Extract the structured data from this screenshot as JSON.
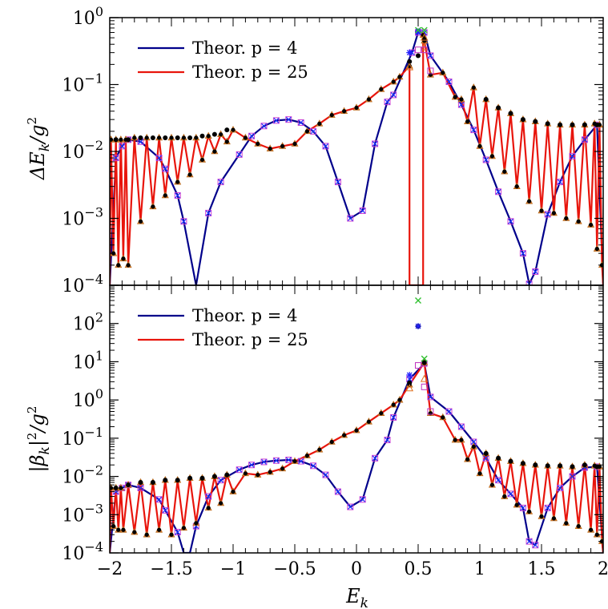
{
  "chart_data": [
    {
      "type": "line",
      "ylabel": "ΔE_k/g²",
      "yscale": "log",
      "xlim": [
        -2,
        2
      ],
      "ylim": [
        0.0001,
        1
      ],
      "y_ticks": [
        {
          "v": 1,
          "b": "10",
          "e": "0"
        },
        {
          "v": 0.1,
          "b": "10",
          "e": "−1"
        },
        {
          "v": 0.01,
          "b": "10",
          "e": "−2"
        },
        {
          "v": 0.001,
          "b": "10",
          "e": "−3"
        },
        {
          "v": 0.0001,
          "b": "10",
          "e": "−4"
        }
      ],
      "legend_position": "top-left",
      "legend": [
        "Theor. p = 4",
        "Theor. p = 25"
      ],
      "series": [
        {
          "name": "Theor. p = 4",
          "color": "#00008b",
          "x": [
            -2.0,
            -1.95,
            -1.9,
            -1.85,
            -1.75,
            -1.6,
            -1.55,
            -1.45,
            -1.4,
            -1.3,
            -1.2,
            -1.1,
            -0.95,
            -0.85,
            -0.75,
            -0.65,
            -0.55,
            -0.45,
            -0.35,
            -0.25,
            -0.15,
            -0.05,
            0.05,
            0.15,
            0.25,
            0.3,
            0.45,
            0.5,
            0.55,
            0.6,
            0.75,
            0.85,
            0.95,
            1.05,
            1.15,
            1.25,
            1.35,
            1.4,
            1.45,
            1.55,
            1.65,
            1.75,
            1.85,
            1.95,
            2.0
          ],
          "y": [
            0.0001,
            0.008,
            0.012,
            0.015,
            0.014,
            0.008,
            0.0055,
            0.0022,
            0.0009,
            9.5e-05,
            0.0012,
            0.0035,
            0.009,
            0.017,
            0.024,
            0.029,
            0.03,
            0.027,
            0.02,
            0.012,
            0.0035,
            0.001,
            0.0013,
            0.013,
            0.055,
            0.07,
            0.3,
            0.6,
            0.6,
            0.27,
            0.11,
            0.05,
            0.021,
            0.0075,
            0.0025,
            0.0009,
            0.0003,
            0.000105,
            0.00016,
            0.00115,
            0.0035,
            0.0085,
            0.015,
            0.025,
            0.0001
          ]
        },
        {
          "name": "Theor. p = 25",
          "color": "#e8150c",
          "x": [
            -2.0,
            -1.99,
            -1.97,
            -1.95,
            -1.93,
            -1.91,
            -1.89,
            -1.87,
            -1.85,
            -1.8,
            -1.75,
            -1.7,
            -1.65,
            -1.6,
            -1.55,
            -1.5,
            -1.45,
            -1.4,
            -1.35,
            -1.3,
            -1.25,
            -1.2,
            -1.15,
            -1.1,
            -1.05,
            -1.0,
            -0.9,
            -0.8,
            -0.7,
            -0.6,
            -0.5,
            -0.4,
            -0.3,
            -0.2,
            -0.1,
            0.0,
            0.1,
            0.2,
            0.3,
            0.35,
            0.43,
            0.43,
            0.45,
            0.54,
            0.54,
            0.55,
            0.6,
            0.7,
            0.8,
            0.85,
            0.9,
            0.95,
            1.0,
            1.05,
            1.1,
            1.15,
            1.2,
            1.25,
            1.3,
            1.35,
            1.4,
            1.45,
            1.5,
            1.55,
            1.6,
            1.65,
            1.7,
            1.75,
            1.8,
            1.85,
            1.9,
            1.93,
            1.95,
            1.97,
            1.99,
            2.0
          ],
          "y": [
            0.0001,
            0.015,
            0.0003,
            0.015,
            0.0002,
            0.015,
            0.00025,
            0.015,
            0.0002,
            0.016,
            0.0009,
            0.016,
            0.0015,
            0.016,
            0.0022,
            0.016,
            0.0035,
            0.016,
            0.0045,
            0.016,
            0.0075,
            0.017,
            0.01,
            0.018,
            0.014,
            0.021,
            0.016,
            0.013,
            0.011,
            0.012,
            0.013,
            0.02,
            0.026,
            0.035,
            0.04,
            0.045,
            0.06,
            0.085,
            0.11,
            0.13,
            0.19,
            0.0001,
            0.0001,
            0.0001,
            0.55,
            0.45,
            0.14,
            0.15,
            0.065,
            0.06,
            0.028,
            0.09,
            0.012,
            0.06,
            0.0085,
            0.045,
            0.005,
            0.037,
            0.003,
            0.03,
            0.0018,
            0.028,
            0.0013,
            0.026,
            0.0012,
            0.025,
            0.001,
            0.025,
            0.0009,
            0.025,
            0.0008,
            0.026,
            0.00035,
            0.025,
            0.0002,
            0.0001
          ]
        }
      ],
      "markers": [
        {
          "name": "black-dot",
          "color": "#000000",
          "x": [
            -1.95,
            -1.85,
            -1.75,
            -1.65,
            -1.55,
            -1.45,
            -1.35,
            -1.25,
            -1.15,
            -1.05,
            0.43,
            0.5,
            0.55,
            1.05,
            1.15,
            1.25,
            1.35,
            1.45,
            1.55,
            1.65,
            1.75,
            1.85,
            1.95
          ],
          "y": [
            0.015,
            0.015,
            0.016,
            0.016,
            0.016,
            0.016,
            0.016,
            0.017,
            0.018,
            0.021,
            0.22,
            0.27,
            0.48,
            0.06,
            0.045,
            0.037,
            0.03,
            0.028,
            0.026,
            0.025,
            0.025,
            0.025,
            0.025
          ]
        },
        {
          "name": "orange-triangle",
          "color": "#e07020",
          "x": [
            0.43,
            0.55,
            0.55
          ],
          "y": [
            0.18,
            0.36,
            0.5
          ]
        },
        {
          "name": "magenta-square",
          "color": "#c030c0",
          "x": [
            0.5,
            0.55,
            0.6
          ],
          "y": [
            0.33,
            0.33,
            0.16
          ]
        },
        {
          "name": "blue-star",
          "color": "#2020ff",
          "x": [
            0.43,
            0.5
          ],
          "y": [
            0.3,
            0.62
          ]
        },
        {
          "name": "green-cross",
          "color": "#30c030",
          "x": [
            0.5,
            0.55
          ],
          "y": [
            0.65,
            0.65
          ]
        }
      ]
    },
    {
      "type": "line",
      "ylabel": "|β_k|²/g²",
      "xlabel": "E_k",
      "yscale": "log",
      "xlim": [
        -2,
        2
      ],
      "ylim": [
        0.0001,
        1000
      ],
      "x_ticks": [
        "−2",
        "−1.5",
        "−1",
        "−0.5",
        "0",
        "0.5",
        "1",
        "1.5",
        "2"
      ],
      "y_ticks": [
        {
          "v": 100,
          "b": "10",
          "e": "2"
        },
        {
          "v": 10,
          "b": "10",
          "e": "1"
        },
        {
          "v": 1,
          "b": "10",
          "e": "0"
        },
        {
          "v": 0.1,
          "b": "10",
          "e": "−1"
        },
        {
          "v": 0.01,
          "b": "10",
          "e": "−2"
        },
        {
          "v": 0.001,
          "b": "10",
          "e": "−3"
        },
        {
          "v": 0.0001,
          "b": "10",
          "e": "−4"
        }
      ],
      "legend_position": "top-left",
      "legend": [
        "Theor. p = 4",
        "Theor. p = 25"
      ],
      "series": [
        {
          "name": "Theor. p = 4",
          "color": "#00008b",
          "x": [
            -2.0,
            -1.95,
            -1.9,
            -1.85,
            -1.75,
            -1.6,
            -1.55,
            -1.45,
            -1.4,
            -1.35,
            -1.3,
            -1.2,
            -1.1,
            -0.95,
            -0.85,
            -0.75,
            -0.65,
            -0.55,
            -0.45,
            -0.35,
            -0.25,
            -0.15,
            -0.05,
            0.05,
            0.15,
            0.25,
            0.3,
            0.43,
            0.55,
            0.6,
            0.75,
            0.85,
            0.95,
            1.05,
            1.15,
            1.25,
            1.35,
            1.4,
            1.45,
            1.55,
            1.65,
            1.75,
            1.85,
            1.95,
            2.0
          ],
          "y": [
            0.0001,
            0.004,
            0.005,
            0.006,
            0.005,
            0.0025,
            0.0013,
            0.00035,
            0.0001,
            0.0001,
            0.0005,
            0.003,
            0.008,
            0.015,
            0.02,
            0.024,
            0.026,
            0.027,
            0.025,
            0.019,
            0.011,
            0.004,
            0.0016,
            0.0025,
            0.03,
            0.09,
            0.35,
            3.5,
            9.0,
            1.2,
            0.5,
            0.2,
            0.08,
            0.03,
            0.008,
            0.0035,
            0.0015,
            0.0002,
            0.00016,
            0.0015,
            0.005,
            0.01,
            0.017,
            0.018,
            0.0001
          ]
        },
        {
          "name": "Theor. p = 25",
          "color": "#e8150c",
          "x": [
            -2.0,
            -1.99,
            -1.97,
            -1.95,
            -1.93,
            -1.91,
            -1.89,
            -1.85,
            -1.8,
            -1.75,
            -1.7,
            -1.65,
            -1.6,
            -1.55,
            -1.5,
            -1.45,
            -1.4,
            -1.35,
            -1.3,
            -1.25,
            -1.2,
            -1.15,
            -1.1,
            -1.05,
            -1.0,
            -0.9,
            -0.8,
            -0.7,
            -0.6,
            -0.5,
            -0.4,
            -0.3,
            -0.2,
            -0.1,
            0.0,
            0.1,
            0.2,
            0.3,
            0.35,
            0.43,
            0.55,
            0.6,
            0.7,
            0.8,
            0.85,
            0.9,
            0.95,
            1.0,
            1.05,
            1.1,
            1.15,
            1.2,
            1.25,
            1.3,
            1.35,
            1.4,
            1.45,
            1.5,
            1.55,
            1.6,
            1.65,
            1.7,
            1.75,
            1.8,
            1.85,
            1.9,
            1.93,
            1.95,
            1.97,
            1.99,
            2.0
          ],
          "y": [
            0.0001,
            0.005,
            0.0005,
            0.005,
            0.0004,
            0.005,
            0.0004,
            0.006,
            0.00035,
            0.007,
            0.0003,
            0.007,
            0.0004,
            0.008,
            0.0003,
            0.008,
            0.00045,
            0.009,
            0.0006,
            0.009,
            0.0015,
            0.01,
            0.002,
            0.011,
            0.004,
            0.012,
            0.011,
            0.013,
            0.016,
            0.025,
            0.035,
            0.05,
            0.08,
            0.12,
            0.16,
            0.27,
            0.45,
            0.75,
            1.0,
            2.5,
            9.5,
            0.45,
            0.35,
            0.09,
            0.09,
            0.028,
            0.06,
            0.012,
            0.04,
            0.006,
            0.03,
            0.003,
            0.025,
            0.0018,
            0.022,
            0.0012,
            0.02,
            0.0009,
            0.019,
            0.0008,
            0.019,
            0.0006,
            0.018,
            0.0005,
            0.02,
            0.0004,
            0.019,
            0.0003,
            0.018,
            0.0002,
            0.0001
          ]
        }
      ],
      "markers": [
        {
          "name": "black-dot",
          "color": "#000000",
          "x": [
            -1.95,
            -1.85,
            -1.75,
            -1.65,
            -1.55,
            -1.45,
            -1.35,
            -1.25,
            -1.15,
            -1.05,
            0.43,
            0.5,
            0.55,
            1.05,
            1.15,
            1.25,
            1.35,
            1.45,
            1.55,
            1.65,
            1.75,
            1.85,
            1.95
          ],
          "y": [
            0.005,
            0.006,
            0.007,
            0.007,
            0.008,
            0.008,
            0.009,
            0.009,
            0.01,
            0.011,
            2.8,
            85,
            9.5,
            0.04,
            0.03,
            0.025,
            0.022,
            0.02,
            0.019,
            0.019,
            0.018,
            0.02,
            0.018
          ]
        },
        {
          "name": "orange-triangle",
          "color": "#e07020",
          "x": [
            0.43,
            0.55
          ],
          "y": [
            2.0,
            3.5
          ]
        },
        {
          "name": "magenta-square",
          "color": "#c030c0",
          "x": [
            0.5,
            0.55,
            0.6
          ],
          "y": [
            8.0,
            2.2,
            0.5
          ]
        },
        {
          "name": "blue-star",
          "color": "#2020ff",
          "x": [
            0.43,
            0.5
          ],
          "y": [
            4.5,
            85
          ]
        },
        {
          "name": "green-cross",
          "color": "#30c030",
          "x": [
            0.5,
            0.55
          ],
          "y": [
            400,
            12
          ]
        }
      ]
    }
  ]
}
